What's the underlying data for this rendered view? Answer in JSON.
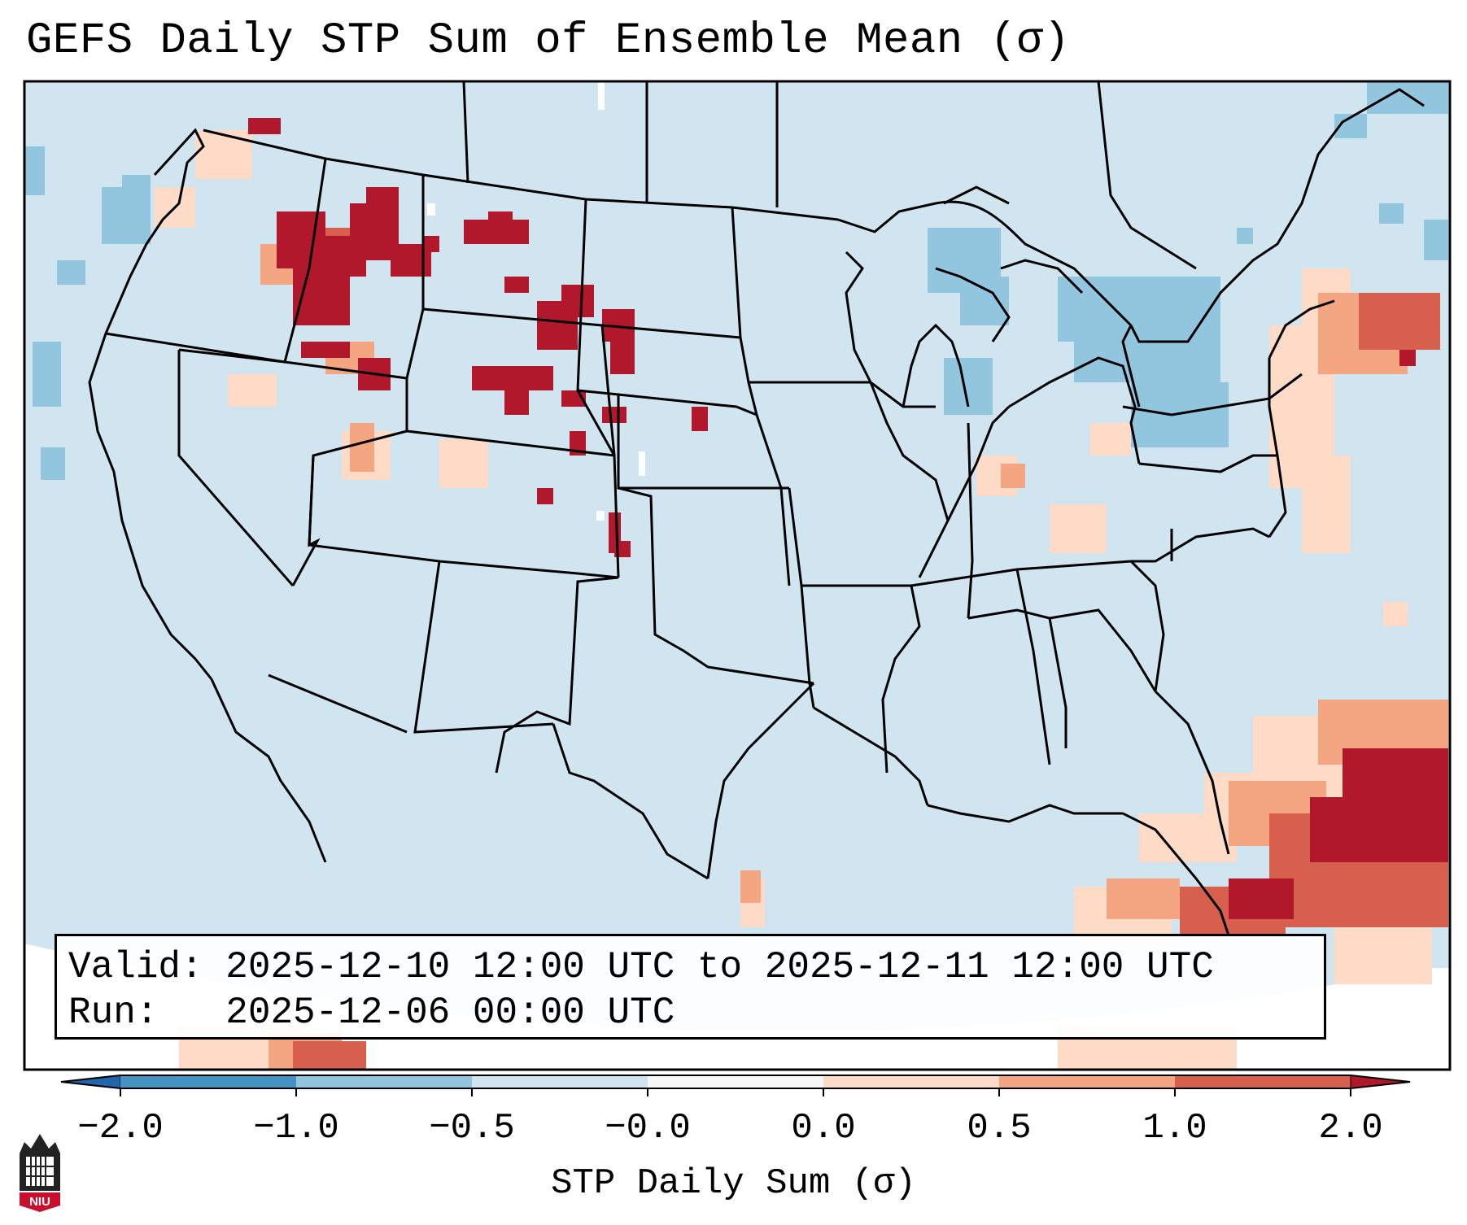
{
  "title": "GEFS Daily STP Sum of Ensemble Mean (σ)",
  "info": {
    "valid_line": "Valid: 2025-12-10 12:00 UTC to 2025-12-11 12:00 UTC",
    "run_line": "Run:   2025-12-06 00:00 UTC"
  },
  "colorbar": {
    "label": "STP Daily Sum (σ)",
    "ticks": [
      "−2.0",
      "−1.0",
      "−0.5",
      "−0.0",
      "0.0",
      "0.5",
      "1.0",
      "2.0"
    ],
    "bins": [
      {
        "from": -2.0,
        "to": -1.0,
        "color": "#4393c3"
      },
      {
        "from": -1.0,
        "to": -0.5,
        "color": "#92c5de"
      },
      {
        "from": -0.5,
        "to": -0.0,
        "color": "#d1e5f0"
      },
      {
        "from": -0.0,
        "to": 0.0,
        "color": "#f7f7f7"
      },
      {
        "from": 0.0,
        "to": 0.5,
        "color": "#fddbc7"
      },
      {
        "from": 0.5,
        "to": 1.0,
        "color": "#f4a582"
      },
      {
        "from": 1.0,
        "to": 2.0,
        "color": "#d6604d"
      }
    ],
    "under_color": "#2166ac",
    "over_color": "#b2182b"
  },
  "map": {
    "background_color": "#d1e5f0",
    "outside_color": "#ffffff"
  },
  "logo": {
    "text": "NIU",
    "color": "#c8102e"
  }
}
